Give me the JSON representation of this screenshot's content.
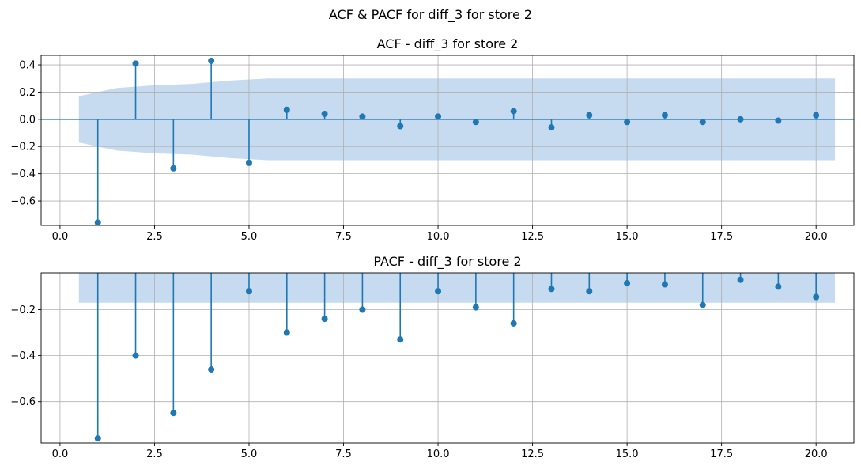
{
  "figure": {
    "suptitle": "ACF & PACF for diff_3 for store 2"
  },
  "chart_data": [
    {
      "type": "stem",
      "title": "ACF - diff_3 for store 2",
      "xlabel": "",
      "ylabel": "",
      "xlim": [
        -0.5,
        21
      ],
      "ylim": [
        -0.78,
        0.47
      ],
      "xticks": [
        0.0,
        2.5,
        5.0,
        7.5,
        10.0,
        12.5,
        15.0,
        17.5,
        20.0
      ],
      "xtick_labels": [
        "0.0",
        "2.5",
        "5.0",
        "7.5",
        "10.0",
        "12.5",
        "15.0",
        "17.5",
        "20.0"
      ],
      "yticks": [
        -0.6,
        -0.4,
        -0.2,
        0.0,
        0.2,
        0.4
      ],
      "ytick_labels": [
        "−0.6",
        "−0.4",
        "−0.2",
        "0.0",
        "0.2",
        "0.4"
      ],
      "grid": true,
      "zero_line": true,
      "color": "#1f77b4",
      "band_color": "#c6dbef",
      "lags": [
        1,
        2,
        3,
        4,
        5,
        6,
        7,
        8,
        9,
        10,
        11,
        12,
        13,
        14,
        15,
        16,
        17,
        18,
        19,
        20
      ],
      "values": [
        -0.76,
        0.41,
        -0.36,
        0.43,
        -0.32,
        0.07,
        0.04,
        0.02,
        -0.05,
        0.02,
        -0.02,
        0.06,
        -0.06,
        0.03,
        -0.02,
        0.03,
        -0.02,
        0.0,
        -0.01,
        0.03
      ],
      "confidence_band": {
        "lags": [
          0.5,
          1.5,
          2.5,
          3.5,
          4.5,
          5.5,
          6.5,
          7.5,
          8.5,
          9.5,
          10.5,
          11.5,
          12.5,
          13.5,
          14.5,
          15.5,
          16.5,
          17.5,
          18.5,
          19.5,
          20.5
        ],
        "upper": [
          0.17,
          0.23,
          0.25,
          0.26,
          0.285,
          0.3,
          0.3,
          0.3,
          0.3,
          0.3,
          0.3,
          0.3,
          0.3,
          0.3,
          0.3,
          0.3,
          0.3,
          0.3,
          0.3,
          0.3,
          0.3
        ],
        "lower": [
          -0.17,
          -0.23,
          -0.25,
          -0.26,
          -0.285,
          -0.3,
          -0.3,
          -0.3,
          -0.3,
          -0.3,
          -0.3,
          -0.3,
          -0.3,
          -0.3,
          -0.3,
          -0.3,
          -0.3,
          -0.3,
          -0.3,
          -0.3,
          -0.3
        ]
      }
    },
    {
      "type": "stem",
      "title": "PACF - diff_3 for store 2",
      "xlabel": "",
      "ylabel": "",
      "xlim": [
        -0.5,
        21
      ],
      "ylim": [
        -0.78,
        -0.04
      ],
      "xticks": [
        0.0,
        2.5,
        5.0,
        7.5,
        10.0,
        12.5,
        15.0,
        17.5,
        20.0
      ],
      "xtick_labels": [
        "0.0",
        "2.5",
        "5.0",
        "7.5",
        "10.0",
        "12.5",
        "15.0",
        "17.5",
        "20.0"
      ],
      "yticks": [
        -0.6,
        -0.4,
        -0.2
      ],
      "ytick_labels": [
        "−0.6",
        "−0.4",
        "−0.2"
      ],
      "grid": true,
      "zero_line": false,
      "color": "#1f77b4",
      "band_color": "#c6dbef",
      "lags": [
        1,
        2,
        3,
        4,
        5,
        6,
        7,
        8,
        9,
        10,
        11,
        12,
        13,
        14,
        15,
        16,
        17,
        18,
        19,
        20
      ],
      "values": [
        -0.76,
        -0.4,
        -0.65,
        -0.46,
        -0.12,
        -0.3,
        -0.24,
        -0.2,
        -0.33,
        -0.12,
        -0.19,
        -0.26,
        -0.11,
        -0.12,
        -0.085,
        -0.09,
        -0.18,
        -0.07,
        -0.1,
        -0.145
      ],
      "confidence_band": {
        "lags": [
          0.5,
          20.5
        ],
        "upper": [
          0.17,
          0.17
        ],
        "lower": [
          -0.17,
          -0.17
        ]
      }
    }
  ]
}
